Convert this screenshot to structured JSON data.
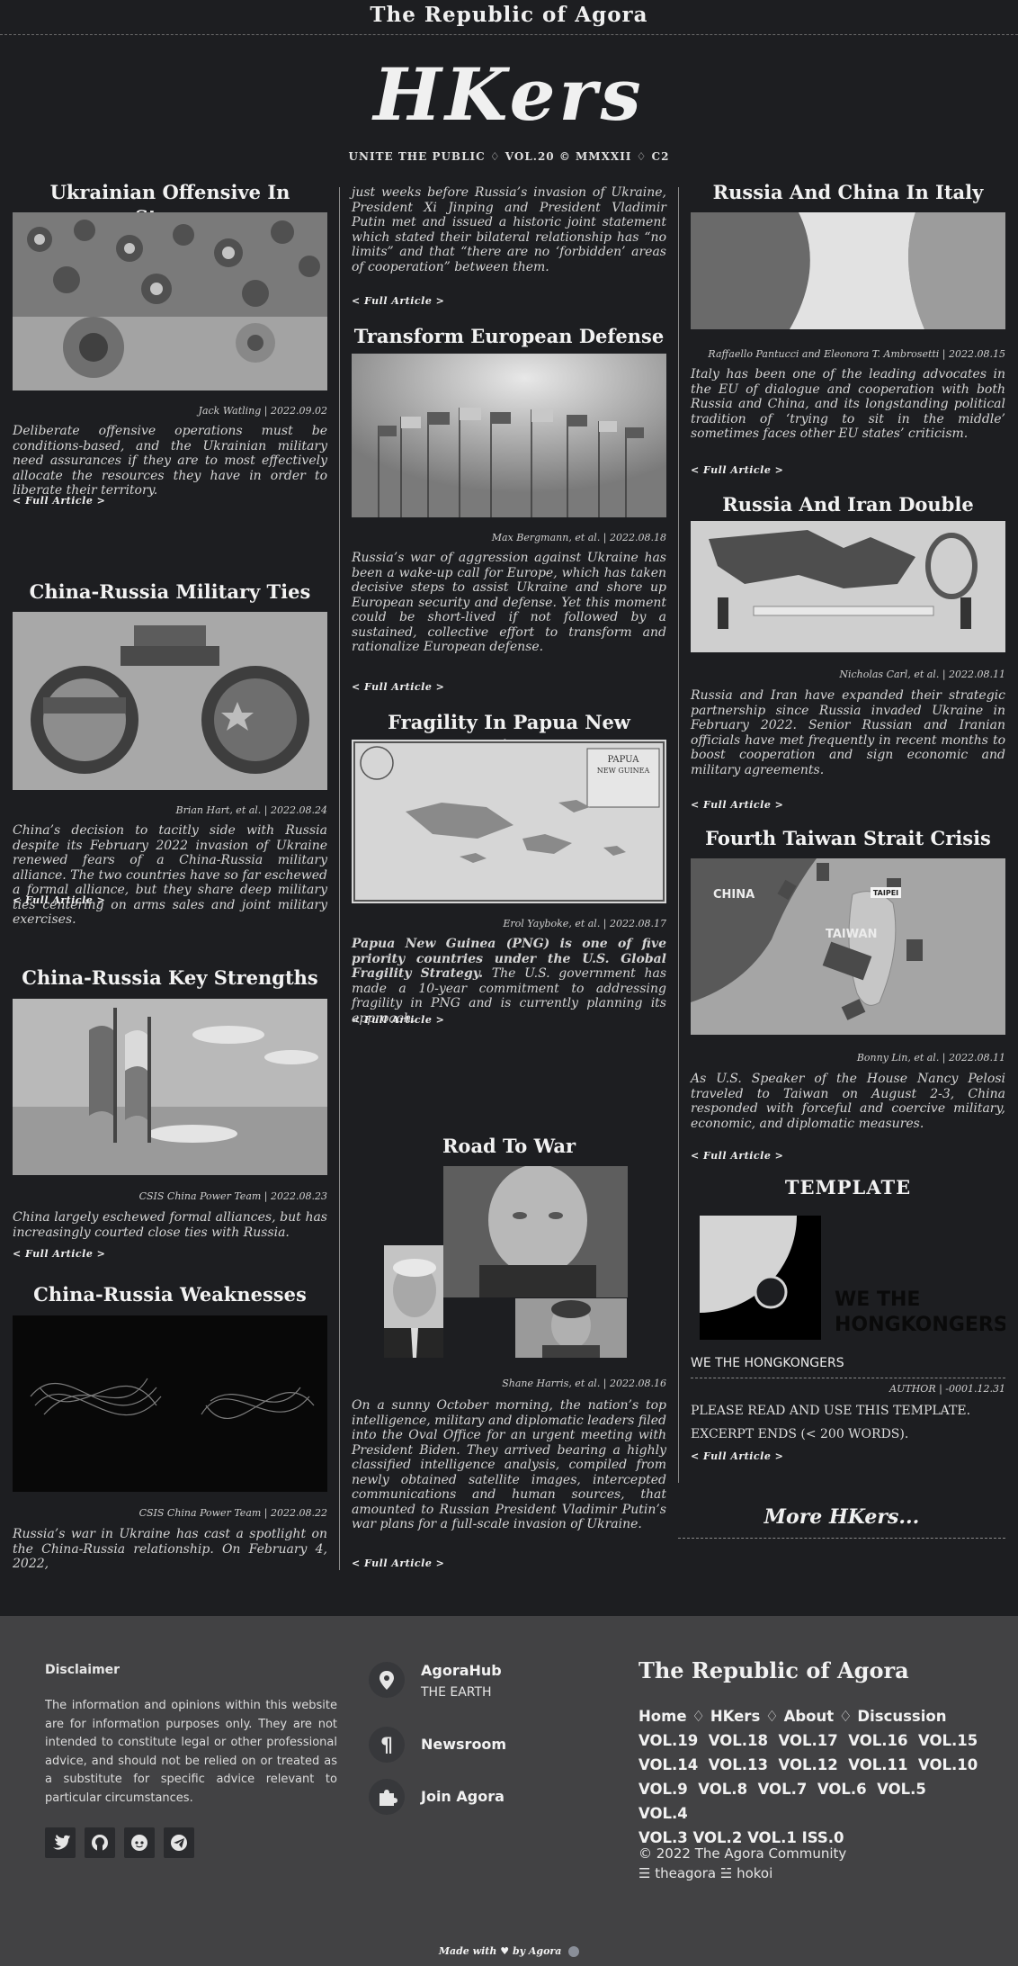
{
  "header": {
    "top_title": "The Republic of Agora",
    "masthead": "HKers",
    "tagline": "UNITE THE PUBLIC ♢ VOL.20 © MMXXII ♢ C2"
  },
  "col1": [
    {
      "title": "Ukrainian Offensive In Stages",
      "byline": "Jack Watling | 2022.09.02",
      "excerpt": "Deliberate offensive operations must be conditions-based, and the Ukrainian military need assurances if they are to most effectively allocate the resources they have in order to liberate their territory."
    },
    {
      "title": "China-Russia Military Ties",
      "byline": "Brian Hart, et al. | 2022.08.24",
      "excerpt": "China’s decision to tacitly side with Russia despite its February 2022 invasion of Ukraine renewed fears of a China-Russia military alliance. The two countries have so far eschewed a formal alliance, but they share deep military ties centering on arms sales and joint military exercises."
    },
    {
      "title": "China-Russia Key Strengths",
      "byline": "CSIS China Power Team | 2022.08.23",
      "excerpt": "China largely eschewed formal alliances, but has increasingly courted close ties with Russia."
    },
    {
      "title": "China-Russia Weaknesses",
      "byline": "CSIS China Power Team | 2022.08.22",
      "excerpt": "Russia’s war in Ukraine has cast a spotlight on the China-Russia relationship. On February 4, 2022,"
    }
  ],
  "col2_continuation": "just weeks before Russia’s invasion of Ukraine, President Xi Jinping and President Vladimir Putin met and issued a historic joint statement which stated their bilateral relationship has “no limits” and that “there are no ‘forbidden’ areas of cooperation” between them.",
  "col2": [
    {
      "title": "Transform European Defense",
      "byline": "Max Bergmann, et al. | 2022.08.18",
      "excerpt": "Russia’s war of aggression against Ukraine has been a wake-up call for Europe, which has taken decisive steps to assist Ukraine and shore up European security and defense. Yet this moment could be short-lived if not followed by a sustained, collective effort to transform and rationalize European defense."
    },
    {
      "title": "Fragility In Papua New Guinea",
      "byline": "Erol Yayboke, et al. | 2022.08.17",
      "excerpt_bold": "Papua New Guinea (PNG) is one of five priority countries under the U.S. Global Fragility Strategy.",
      "excerpt": " The U.S. government has made a 10-year commitment to addressing fragility in PNG and is currently planning its approach."
    },
    {
      "title": "Road To War",
      "byline": "Shane Harris, et al. | 2022.08.16",
      "excerpt": "On a sunny October morning, the nation’s top intelligence, military and diplomatic leaders filed into the Oval Office for an urgent meeting with President Biden. They arrived bearing a highly classified intelligence analysis, compiled from newly obtained satellite images, intercepted communications and human sources, that amounted to Russian President Vladimir Putin’s war plans for a full-scale invasion of Ukraine."
    }
  ],
  "col3": [
    {
      "title": "Russia And China In Italy",
      "byline": "Raffaello Pantucci and Eleonora T. Ambrosetti | 2022.08.15",
      "excerpt": "Italy has been one of the leading advocates in the EU of dialogue and cooperation with both Russia and China, and its longstanding political tradition of ‘trying to sit in the middle’ sometimes faces other EU states’ criticism."
    },
    {
      "title": "Russia And Iran Double Down",
      "byline": "Nicholas Carl, et al. | 2022.08.11",
      "excerpt": "Russia and Iran have expanded their strategic partnership since Russia invaded Ukraine in February 2022. Senior Russian and Iranian officials have met frequently in recent months to boost cooperation and sign economic and military agreements."
    },
    {
      "title": "Fourth Taiwan Strait Crisis",
      "byline": "Bonny Lin, et al. | 2022.08.11",
      "excerpt": "As U.S. Speaker of the House Nancy Pelosi traveled to Taiwan on August 2-3, China responded with forceful and coercive military, economic, and diplomatic measures."
    }
  ],
  "template": {
    "title": "TEMPLATE",
    "logo_text_1": "WE THE",
    "logo_text_2": "HONGKONGERS",
    "name": "WE THE HONGKONGERS",
    "byline": "AUTHOR | -0001.12.31",
    "body_1": "PLEASE READ AND USE THIS TEMPLATE.",
    "body_2": "EXCERPT ENDS (< 200 WORDS)."
  },
  "map_labels": {
    "china": "CHINA",
    "taiwan": "TAIWAN",
    "taipei": "TAIPEI",
    "papua_1": "PAPUA",
    "papua_2": "NEW GUINEA"
  },
  "full_article_label": "< Full Article >",
  "more_hkers": "More HKers...",
  "footer": {
    "disclaimer_title": "Disclaimer",
    "disclaimer_text": "The information and opinions within this website are for information purposes only. They are not intended to constitute legal or other professional advice, and should not be relied on or treated as a substitute for specific advice relevant to particular circumstances.",
    "contacts": [
      {
        "title": "AgoraHub",
        "sub": "THE EARTH"
      },
      {
        "title": "Newsroom"
      },
      {
        "title": "Join Agora"
      }
    ],
    "brand": "The Republic of Agora",
    "nav": [
      "Home",
      "HKers",
      "About",
      "Discussion"
    ],
    "volumes": [
      "VOL.19",
      "VOL.18",
      "VOL.17",
      "VOL.16",
      "VOL.15",
      "VOL.14",
      "VOL.13",
      "VOL.12",
      "VOL.11",
      "VOL.10",
      "VOL.9",
      "VOL.8",
      "VOL.7",
      "VOL.6",
      "VOL.5",
      "VOL.4",
      "VOL.3",
      "VOL.2",
      "VOL.1",
      "ISS.0"
    ],
    "copyright": "© 2022 The Agora Community",
    "credits": "☰ theagora ☱ hokoi",
    "made_with_1": "Made with",
    "made_with_2": "by Agora"
  },
  "social_icons": [
    "twitter-icon",
    "github-icon",
    "reddit-icon",
    "telegram-icon"
  ]
}
